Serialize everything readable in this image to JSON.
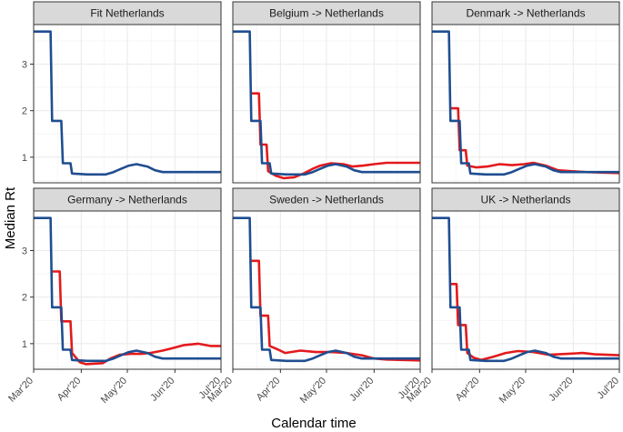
{
  "figure": {
    "ylabel": "Median Rt",
    "xlabel": "Calendar time",
    "series_colors": {
      "baseline": "#1f4e91",
      "transfer": "#e31a1c"
    }
  },
  "chart_data": {
    "type": "line",
    "x_unit": "days since 2020-03-01",
    "xlim": [
      0,
      122
    ],
    "ylim": [
      0.45,
      3.85
    ],
    "x_ticks": [
      {
        "label": "Mar'20",
        "x": 0
      },
      {
        "label": "Apr'20",
        "x": 31
      },
      {
        "label": "May'20",
        "x": 61
      },
      {
        "label": "Jun'20",
        "x": 92
      },
      {
        "label": "Jul'20",
        "x": 122
      }
    ],
    "y_ticks": [
      1,
      2,
      3
    ],
    "panels": [
      {
        "title": "Fit Netherlands",
        "baseline": [
          [
            0,
            3.7
          ],
          [
            11,
            3.7
          ],
          [
            12,
            1.78
          ],
          [
            18,
            1.78
          ],
          [
            19,
            0.87
          ],
          [
            24,
            0.87
          ],
          [
            25,
            0.65
          ],
          [
            35,
            0.63
          ],
          [
            47,
            0.63
          ],
          [
            52,
            0.68
          ],
          [
            57,
            0.75
          ],
          [
            62,
            0.82
          ],
          [
            67,
            0.85
          ],
          [
            74,
            0.8
          ],
          [
            79,
            0.72
          ],
          [
            84,
            0.68
          ],
          [
            122,
            0.68
          ]
        ],
        "transfer": null
      },
      {
        "title": "Belgium -> Netherlands",
        "baseline": [
          [
            0,
            3.7
          ],
          [
            11,
            3.7
          ],
          [
            12,
            1.78
          ],
          [
            18,
            1.78
          ],
          [
            19,
            0.87
          ],
          [
            24,
            0.87
          ],
          [
            25,
            0.65
          ],
          [
            35,
            0.63
          ],
          [
            47,
            0.63
          ],
          [
            52,
            0.68
          ],
          [
            57,
            0.75
          ],
          [
            62,
            0.82
          ],
          [
            67,
            0.85
          ],
          [
            74,
            0.8
          ],
          [
            79,
            0.72
          ],
          [
            84,
            0.68
          ],
          [
            122,
            0.68
          ]
        ],
        "transfer": [
          [
            12,
            2.37
          ],
          [
            17,
            2.37
          ],
          [
            18,
            1.27
          ],
          [
            22,
            1.27
          ],
          [
            23,
            0.7
          ],
          [
            28,
            0.6
          ],
          [
            33,
            0.55
          ],
          [
            40,
            0.57
          ],
          [
            46,
            0.65
          ],
          [
            52,
            0.75
          ],
          [
            57,
            0.82
          ],
          [
            64,
            0.87
          ],
          [
            72,
            0.85
          ],
          [
            78,
            0.8
          ],
          [
            85,
            0.82
          ],
          [
            92,
            0.85
          ],
          [
            100,
            0.88
          ],
          [
            122,
            0.88
          ]
        ]
      },
      {
        "title": "Denmark -> Netherlands",
        "baseline": [
          [
            0,
            3.7
          ],
          [
            11,
            3.7
          ],
          [
            12,
            1.78
          ],
          [
            18,
            1.78
          ],
          [
            19,
            0.87
          ],
          [
            24,
            0.87
          ],
          [
            25,
            0.65
          ],
          [
            35,
            0.63
          ],
          [
            47,
            0.63
          ],
          [
            52,
            0.68
          ],
          [
            57,
            0.75
          ],
          [
            62,
            0.82
          ],
          [
            67,
            0.85
          ],
          [
            74,
            0.8
          ],
          [
            79,
            0.72
          ],
          [
            84,
            0.68
          ],
          [
            122,
            0.68
          ]
        ],
        "transfer": [
          [
            12,
            2.05
          ],
          [
            17,
            2.05
          ],
          [
            18,
            1.15
          ],
          [
            22,
            1.15
          ],
          [
            23,
            0.82
          ],
          [
            29,
            0.78
          ],
          [
            36,
            0.8
          ],
          [
            44,
            0.85
          ],
          [
            52,
            0.83
          ],
          [
            60,
            0.85
          ],
          [
            66,
            0.88
          ],
          [
            74,
            0.82
          ],
          [
            82,
            0.72
          ],
          [
            90,
            0.7
          ],
          [
            100,
            0.68
          ],
          [
            122,
            0.66
          ]
        ]
      },
      {
        "title": "Germany -> Netherlands",
        "baseline": [
          [
            0,
            3.7
          ],
          [
            11,
            3.7
          ],
          [
            12,
            1.78
          ],
          [
            18,
            1.78
          ],
          [
            19,
            0.87
          ],
          [
            24,
            0.87
          ],
          [
            25,
            0.65
          ],
          [
            35,
            0.63
          ],
          [
            47,
            0.63
          ],
          [
            52,
            0.68
          ],
          [
            57,
            0.75
          ],
          [
            62,
            0.82
          ],
          [
            67,
            0.85
          ],
          [
            74,
            0.8
          ],
          [
            79,
            0.72
          ],
          [
            84,
            0.68
          ],
          [
            122,
            0.68
          ]
        ],
        "transfer": [
          [
            12,
            2.55
          ],
          [
            17,
            2.55
          ],
          [
            18,
            1.48
          ],
          [
            24,
            1.48
          ],
          [
            25,
            0.8
          ],
          [
            30,
            0.6
          ],
          [
            34,
            0.56
          ],
          [
            45,
            0.58
          ],
          [
            50,
            0.68
          ],
          [
            56,
            0.76
          ],
          [
            63,
            0.78
          ],
          [
            70,
            0.78
          ],
          [
            76,
            0.8
          ],
          [
            84,
            0.85
          ],
          [
            90,
            0.9
          ],
          [
            98,
            0.97
          ],
          [
            107,
            1.0
          ],
          [
            112,
            0.97
          ],
          [
            115,
            0.95
          ],
          [
            122,
            0.95
          ]
        ]
      },
      {
        "title": "Sweden -> Netherlands",
        "baseline": [
          [
            0,
            3.7
          ],
          [
            11,
            3.7
          ],
          [
            12,
            1.78
          ],
          [
            18,
            1.78
          ],
          [
            19,
            0.87
          ],
          [
            24,
            0.87
          ],
          [
            25,
            0.65
          ],
          [
            35,
            0.63
          ],
          [
            47,
            0.63
          ],
          [
            52,
            0.68
          ],
          [
            57,
            0.75
          ],
          [
            62,
            0.82
          ],
          [
            67,
            0.85
          ],
          [
            74,
            0.8
          ],
          [
            79,
            0.72
          ],
          [
            84,
            0.68
          ],
          [
            122,
            0.68
          ]
        ],
        "transfer": [
          [
            12,
            2.78
          ],
          [
            17,
            2.78
          ],
          [
            18,
            1.6
          ],
          [
            23,
            1.6
          ],
          [
            24,
            0.95
          ],
          [
            29,
            0.88
          ],
          [
            34,
            0.8
          ],
          [
            44,
            0.85
          ],
          [
            54,
            0.82
          ],
          [
            64,
            0.82
          ],
          [
            74,
            0.8
          ],
          [
            84,
            0.75
          ],
          [
            92,
            0.68
          ],
          [
            100,
            0.66
          ],
          [
            122,
            0.64
          ]
        ]
      },
      {
        "title": "UK -> Netherlands",
        "baseline": [
          [
            0,
            3.7
          ],
          [
            11,
            3.7
          ],
          [
            12,
            1.78
          ],
          [
            18,
            1.78
          ],
          [
            19,
            0.87
          ],
          [
            24,
            0.87
          ],
          [
            25,
            0.65
          ],
          [
            35,
            0.63
          ],
          [
            47,
            0.63
          ],
          [
            52,
            0.68
          ],
          [
            57,
            0.75
          ],
          [
            62,
            0.82
          ],
          [
            67,
            0.85
          ],
          [
            74,
            0.8
          ],
          [
            79,
            0.72
          ],
          [
            84,
            0.68
          ],
          [
            122,
            0.68
          ]
        ],
        "transfer": [
          [
            12,
            2.28
          ],
          [
            16,
            2.28
          ],
          [
            17,
            1.4
          ],
          [
            22,
            1.4
          ],
          [
            23,
            0.8
          ],
          [
            27,
            0.7
          ],
          [
            32,
            0.65
          ],
          [
            40,
            0.72
          ],
          [
            48,
            0.8
          ],
          [
            56,
            0.84
          ],
          [
            66,
            0.82
          ],
          [
            76,
            0.76
          ],
          [
            88,
            0.78
          ],
          [
            98,
            0.8
          ],
          [
            106,
            0.77
          ],
          [
            122,
            0.75
          ]
        ]
      }
    ]
  }
}
